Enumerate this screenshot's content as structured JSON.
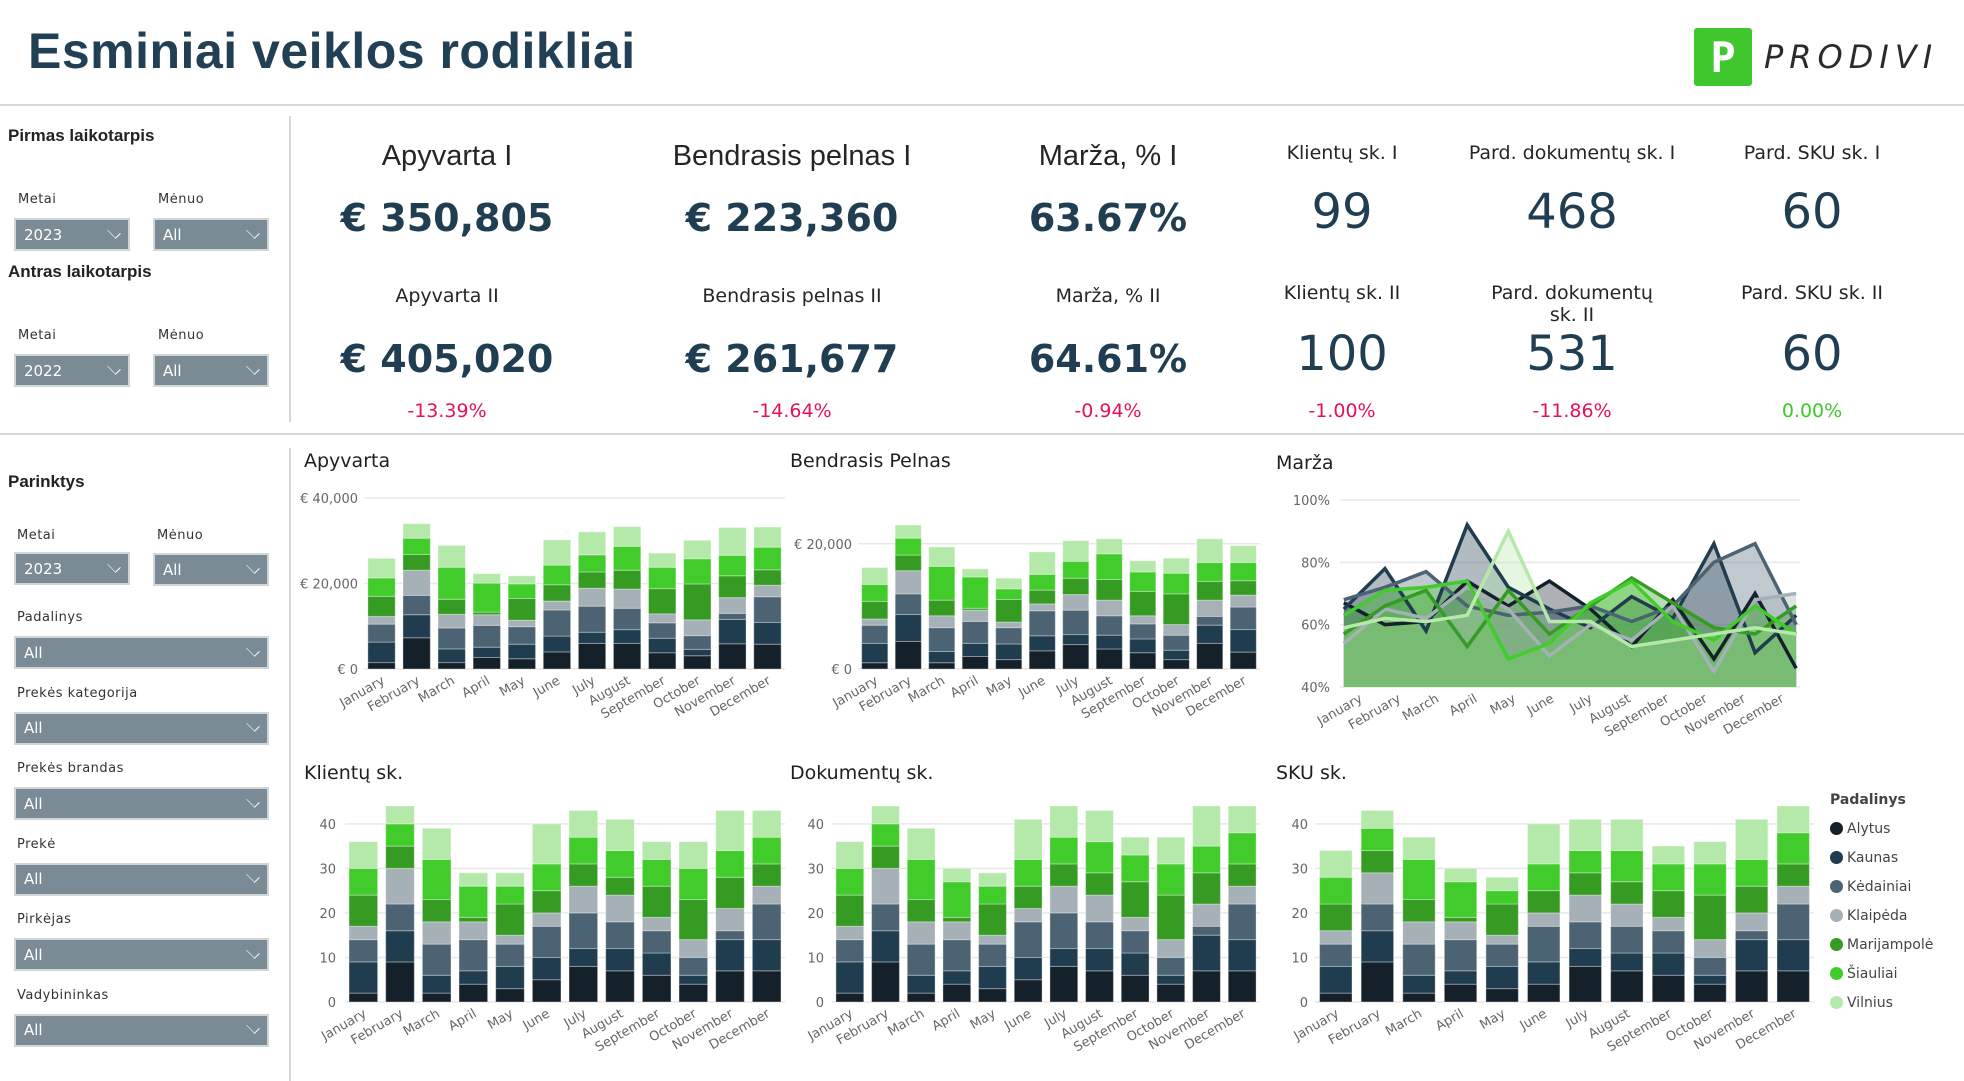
{
  "header": {
    "title": "Esminiai veiklos rodikliai",
    "logo_letter": "P",
    "logo_text": "PRODIVI",
    "brand_color": "#41c72e"
  },
  "period_slicers": {
    "first": {
      "heading": "Pirmas laikotarpis",
      "year_label": "Metai",
      "year_value": "2023",
      "month_label": "Mėnuo",
      "month_value": "All"
    },
    "second": {
      "heading": "Antras laikotarpis",
      "year_label": "Metai",
      "year_value": "2022",
      "month_label": "Mėnuo",
      "month_value": "All"
    }
  },
  "filters": {
    "heading": "Parinktys",
    "year_label": "Metai",
    "year_value": "2023",
    "month_label": "Mėnuo",
    "month_value": "All",
    "fields": [
      {
        "label": "Padalinys",
        "value": "All"
      },
      {
        "label": "Prekės kategorija",
        "value": "All"
      },
      {
        "label": "Prekės brandas",
        "value": "All"
      },
      {
        "label": "Prekė",
        "value": "All"
      },
      {
        "label": "Pirkėjas",
        "value": "All"
      },
      {
        "label": "Vadybininkas",
        "value": "All"
      }
    ]
  },
  "kpis": [
    {
      "label_1": "Apyvarta I",
      "value_1": "€ 350,805",
      "label_2": "Apyvarta II",
      "value_2": "€ 405,020",
      "delta": "-13.39%",
      "delta_positive": false
    },
    {
      "label_1": "Bendrasis pelnas I",
      "value_1": "€ 223,360",
      "label_2": "Bendrasis pelnas II",
      "value_2": "€ 261,677",
      "delta": "-14.64%",
      "delta_positive": false
    },
    {
      "label_1": "Marža, % I",
      "value_1": "63.67%",
      "label_2": "Marža, % II",
      "value_2": "64.61%",
      "delta": "-0.94%",
      "delta_positive": false
    },
    {
      "label_1": "Klientų sk. I",
      "value_1": "99",
      "label_2": "Klientų sk. II",
      "value_2": "100",
      "delta": "-1.00%",
      "delta_positive": false
    },
    {
      "label_1": "Pard. dokumentų sk. I",
      "value_1": "468",
      "label_2": "Pard. dokumentų sk. II",
      "value_2": "531",
      "delta": "-11.86%",
      "delta_positive": false
    },
    {
      "label_1": "Pard. SKU sk. I",
      "value_1": "60",
      "label_2": "Pard. SKU sk. II",
      "value_2": "60",
      "delta": "0.00%",
      "delta_positive": true
    }
  ],
  "legend": {
    "title": "Padalinys",
    "items": [
      {
        "name": "Alytus",
        "color": "#14202a"
      },
      {
        "name": "Kaunas",
        "color": "#203c4f"
      },
      {
        "name": "Kėdainiai",
        "color": "#4b6372"
      },
      {
        "name": "Klaipėda",
        "color": "#a6b0b7"
      },
      {
        "name": "Marijampolė",
        "color": "#359b22"
      },
      {
        "name": "Šiauliai",
        "color": "#41cc2b"
      },
      {
        "name": "Vilnius",
        "color": "#b4e9aa"
      }
    ]
  },
  "chart_data": [
    {
      "id": "apyvarta",
      "type": "bar",
      "stacked": true,
      "title": "Apyvarta",
      "ylim": [
        0,
        40000
      ],
      "yticks": [
        0,
        20000,
        40000
      ],
      "ytick_labels": [
        "€ 0",
        "€ 20,000",
        "€ 40,000"
      ],
      "categories": [
        "January",
        "February",
        "March",
        "April",
        "May",
        "June",
        "July",
        "August",
        "September",
        "October",
        "November",
        "December"
      ],
      "series": [
        {
          "name": "Alytus",
          "values": [
            1500,
            7300,
            1500,
            2700,
            2400,
            4000,
            6000,
            6000,
            3800,
            3100,
            5900,
            5800
          ]
        },
        {
          "name": "Kaunas",
          "values": [
            4800,
            5400,
            3200,
            2400,
            3400,
            3700,
            2600,
            3200,
            3400,
            1500,
            5700,
            5100
          ]
        },
        {
          "name": "Kėdainiai",
          "values": [
            4200,
            4500,
            4900,
            5100,
            4100,
            6100,
            6100,
            5000,
            3600,
            3200,
            1400,
            6000
          ]
        },
        {
          "name": "Klaipėda",
          "values": [
            1800,
            5900,
            3200,
            2500,
            1500,
            2100,
            4200,
            4500,
            2100,
            3700,
            3700,
            2700
          ]
        },
        {
          "name": "Marijampolė",
          "values": [
            4700,
            3700,
            3500,
            600,
            5100,
            3800,
            3800,
            4400,
            5900,
            8400,
            5100,
            3600
          ]
        },
        {
          "name": "Šiauliai",
          "values": [
            4300,
            3800,
            7500,
            6800,
            3400,
            4600,
            4000,
            5600,
            5000,
            5900,
            4800,
            5300
          ]
        },
        {
          "name": "Vilnius",
          "values": [
            4600,
            3400,
            5100,
            2200,
            1900,
            5900,
            5400,
            4600,
            3300,
            4300,
            6500,
            4700
          ]
        }
      ]
    },
    {
      "id": "pelnas",
      "type": "bar",
      "stacked": true,
      "title": "Bendrasis Pelnas",
      "ylim": [
        0,
        23000
      ],
      "yticks": [
        0,
        20000
      ],
      "ytick_labels": [
        "€ 0",
        "€ 20,000"
      ],
      "categories": [
        "January",
        "February",
        "March",
        "April",
        "May",
        "June",
        "July",
        "August",
        "September",
        "October",
        "November",
        "December"
      ],
      "series": [
        {
          "name": "Alytus",
          "values": [
            1000,
            4400,
            1000,
            2000,
            1500,
            2900,
            3900,
            3200,
            2600,
            1500,
            4100,
            2700
          ]
        },
        {
          "name": "Kaunas",
          "values": [
            3100,
            4300,
            1800,
            2100,
            2500,
            2400,
            1600,
            2200,
            2200,
            1500,
            2900,
            3600
          ]
        },
        {
          "name": "Kėdainiai",
          "values": [
            2900,
            3300,
            3800,
            3500,
            2600,
            4000,
            3900,
            3100,
            2400,
            2400,
            1400,
            3600
          ]
        },
        {
          "name": "Klaipėda",
          "values": [
            1000,
            3700,
            1900,
            1800,
            900,
            1100,
            2500,
            2500,
            1300,
            1700,
            2600,
            1900
          ]
        },
        {
          "name": "Marijampolė",
          "values": [
            2800,
            2500,
            2500,
            300,
            3600,
            2200,
            2600,
            3300,
            3900,
            4900,
            3000,
            2300
          ]
        },
        {
          "name": "Šiauliai",
          "values": [
            2700,
            2700,
            5400,
            5000,
            1700,
            2500,
            2700,
            4100,
            3100,
            3300,
            3000,
            2900
          ]
        },
        {
          "name": "Vilnius",
          "values": [
            2700,
            2100,
            3100,
            1300,
            1700,
            3600,
            3300,
            2400,
            1800,
            2400,
            3800,
            2700
          ]
        }
      ]
    },
    {
      "id": "marza",
      "type": "area",
      "title": "Marža",
      "ylim": [
        40,
        100
      ],
      "yticks": [
        40,
        60,
        80,
        100
      ],
      "ytick_labels": [
        "40%",
        "60%",
        "80%",
        "100%"
      ],
      "categories": [
        "January",
        "February",
        "March",
        "April",
        "May",
        "June",
        "July",
        "August",
        "September",
        "October",
        "November",
        "December"
      ],
      "series": [
        {
          "name": "Alytus",
          "values": [
            67,
            60,
            61,
            74,
            66,
            74,
            65,
            53,
            68,
            49,
            70,
            46
          ]
        },
        {
          "name": "Kaunas",
          "values": [
            65,
            78,
            58,
            92,
            72,
            65,
            59,
            69,
            62,
            86,
            51,
            63
          ]
        },
        {
          "name": "Kėdainiai",
          "values": [
            68,
            72,
            77,
            66,
            63,
            64,
            66,
            61,
            66,
            80,
            86,
            60
          ]
        },
        {
          "name": "Klaipėda",
          "values": [
            54,
            65,
            62,
            72,
            65,
            50,
            60,
            55,
            66,
            45,
            68,
            70
          ]
        },
        {
          "name": "Marijampolė",
          "values": [
            57,
            66,
            71,
            53,
            71,
            57,
            66,
            75,
            67,
            59,
            57,
            66
          ]
        },
        {
          "name": "Šiauliai",
          "values": [
            63,
            71,
            72,
            74,
            49,
            54,
            67,
            74,
            61,
            55,
            66,
            57
          ]
        },
        {
          "name": "Vilnius",
          "values": [
            59,
            62,
            61,
            63,
            90,
            61,
            61,
            53,
            55,
            57,
            59,
            57
          ]
        }
      ]
    },
    {
      "id": "klientai",
      "type": "bar",
      "stacked": true,
      "title": "Klientų sk.",
      "ylim": [
        0,
        44
      ],
      "yticks": [
        0,
        10,
        20,
        30,
        40
      ],
      "ytick_labels": [
        "0",
        "10",
        "20",
        "30",
        "40"
      ],
      "categories": [
        "January",
        "February",
        "March",
        "April",
        "May",
        "June",
        "July",
        "August",
        "September",
        "October",
        "November",
        "December"
      ],
      "series": [
        {
          "name": "Alytus",
          "values": [
            2,
            9,
            2,
            4,
            3,
            5,
            8,
            7,
            6,
            4,
            7,
            7
          ]
        },
        {
          "name": "Kaunas",
          "values": [
            7,
            7,
            4,
            3,
            5,
            5,
            4,
            5,
            5,
            2,
            7,
            7
          ]
        },
        {
          "name": "Kėdainiai",
          "values": [
            5,
            6,
            7,
            7,
            5,
            7,
            8,
            6,
            5,
            4,
            2,
            8
          ]
        },
        {
          "name": "Klaipėda",
          "values": [
            3,
            8,
            5,
            4,
            2,
            3,
            6,
            6,
            3,
            4,
            5,
            4
          ]
        },
        {
          "name": "Marijampolė",
          "values": [
            7,
            5,
            5,
            1,
            7,
            5,
            5,
            4,
            7,
            9,
            7,
            5
          ]
        },
        {
          "name": "Šiauliai",
          "values": [
            6,
            5,
            9,
            7,
            4,
            6,
            6,
            6,
            6,
            7,
            6,
            6
          ]
        },
        {
          "name": "Vilnius",
          "values": [
            6,
            4,
            7,
            3,
            3,
            9,
            6,
            7,
            4,
            6,
            9,
            6
          ]
        }
      ]
    },
    {
      "id": "dokumentai",
      "type": "bar",
      "stacked": true,
      "title": "Dokumentų sk.",
      "ylim": [
        0,
        44
      ],
      "yticks": [
        0,
        10,
        20,
        30,
        40
      ],
      "ytick_labels": [
        "0",
        "10",
        "20",
        "30",
        "40"
      ],
      "categories": [
        "January",
        "February",
        "March",
        "April",
        "May",
        "June",
        "July",
        "August",
        "September",
        "October",
        "November",
        "December"
      ],
      "series": [
        {
          "name": "Alytus",
          "values": [
            2,
            9,
            2,
            4,
            3,
            5,
            8,
            7,
            6,
            4,
            7,
            7
          ]
        },
        {
          "name": "Kaunas",
          "values": [
            7,
            7,
            4,
            3,
            5,
            5,
            4,
            5,
            5,
            2,
            8,
            7
          ]
        },
        {
          "name": "Kėdainiai",
          "values": [
            5,
            6,
            7,
            7,
            5,
            8,
            8,
            6,
            5,
            4,
            2,
            8
          ]
        },
        {
          "name": "Klaipėda",
          "values": [
            3,
            8,
            5,
            4,
            2,
            3,
            6,
            6,
            3,
            4,
            5,
            4
          ]
        },
        {
          "name": "Marijampolė",
          "values": [
            7,
            5,
            5,
            1,
            7,
            5,
            5,
            5,
            8,
            10,
            7,
            5
          ]
        },
        {
          "name": "Šiauliai",
          "values": [
            6,
            5,
            9,
            8,
            4,
            6,
            6,
            7,
            6,
            7,
            6,
            7
          ]
        },
        {
          "name": "Vilnius",
          "values": [
            6,
            4,
            7,
            3,
            3,
            9,
            7,
            7,
            4,
            6,
            9,
            6
          ]
        }
      ]
    },
    {
      "id": "sku",
      "type": "bar",
      "stacked": true,
      "title": "SKU sk.",
      "ylim": [
        0,
        44
      ],
      "yticks": [
        0,
        10,
        20,
        30,
        40
      ],
      "ytick_labels": [
        "0",
        "10",
        "20",
        "30",
        "40"
      ],
      "categories": [
        "January",
        "February",
        "March",
        "April",
        "May",
        "June",
        "July",
        "August",
        "September",
        "October",
        "November",
        "December"
      ],
      "series": [
        {
          "name": "Alytus",
          "values": [
            2,
            9,
            2,
            4,
            3,
            4,
            8,
            7,
            6,
            4,
            7,
            7
          ]
        },
        {
          "name": "Kaunas",
          "values": [
            6,
            7,
            4,
            3,
            5,
            5,
            4,
            4,
            5,
            2,
            7,
            7
          ]
        },
        {
          "name": "Kėdainiai",
          "values": [
            5,
            6,
            7,
            7,
            5,
            8,
            6,
            6,
            5,
            4,
            2,
            8
          ]
        },
        {
          "name": "Klaipėda",
          "values": [
            3,
            7,
            5,
            4,
            2,
            3,
            6,
            5,
            3,
            4,
            4,
            4
          ]
        },
        {
          "name": "Marijampolė",
          "values": [
            6,
            5,
            5,
            1,
            7,
            5,
            5,
            5,
            6,
            10,
            6,
            5
          ]
        },
        {
          "name": "Šiauliai",
          "values": [
            6,
            5,
            9,
            8,
            3,
            6,
            5,
            7,
            6,
            7,
            6,
            7
          ]
        },
        {
          "name": "Vilnius",
          "values": [
            6,
            4,
            5,
            3,
            3,
            9,
            7,
            7,
            4,
            5,
            9,
            6
          ]
        }
      ]
    }
  ]
}
